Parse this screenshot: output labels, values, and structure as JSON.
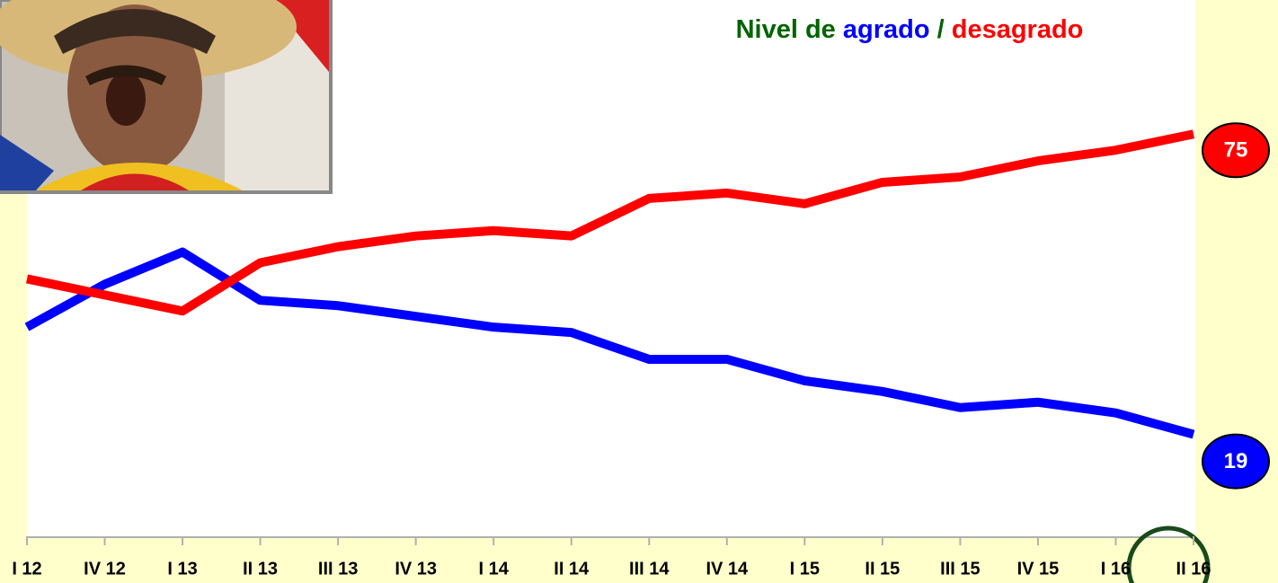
{
  "chart_data": {
    "type": "line",
    "title_parts": [
      {
        "text": "Nivel de",
        "color": "#006400"
      },
      {
        "text": "agrado",
        "color": "#0000ff"
      },
      {
        "text": "/",
        "color": "#006400"
      },
      {
        "text": "desagrado",
        "color": "#ff0000"
      }
    ],
    "categories": [
      "I 12",
      "IV 12",
      "I 13",
      "II 13",
      "III 13",
      "IV 13",
      "I 14",
      "II 14",
      "III 14",
      "IV 14",
      "I 15",
      "II 15",
      "III 15",
      "IV 15",
      "I 16",
      "II 16"
    ],
    "series": [
      {
        "color": "#0000ff",
        "values": [
          39,
          47,
          53,
          44,
          43,
          41,
          39,
          38,
          33,
          33,
          29,
          27,
          24,
          25,
          23,
          19
        ]
      },
      {
        "color": "#ff0000",
        "values": [
          48,
          45,
          42,
          51,
          54,
          56,
          57,
          56,
          63,
          64,
          62,
          66,
          67,
          70,
          72,
          75
        ]
      }
    ],
    "ylim": [
      0,
      100
    ]
  }
}
